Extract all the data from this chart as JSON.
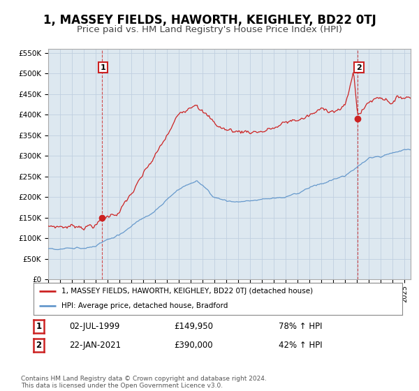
{
  "title": "1, MASSEY FIELDS, HAWORTH, KEIGHLEY, BD22 0TJ",
  "subtitle": "Price paid vs. HM Land Registry's House Price Index (HPI)",
  "title_fontsize": 12,
  "subtitle_fontsize": 9.5,
  "ylim": [
    0,
    560000
  ],
  "yticks": [
    0,
    50000,
    100000,
    150000,
    200000,
    250000,
    300000,
    350000,
    400000,
    450000,
    500000,
    550000
  ],
  "ytick_labels": [
    "£0",
    "£50K",
    "£100K",
    "£150K",
    "£200K",
    "£250K",
    "£300K",
    "£350K",
    "£400K",
    "£450K",
    "£500K",
    "£550K"
  ],
  "sale1_year": 1999.5,
  "sale1_price": 149950,
  "sale2_year": 2021.05,
  "sale2_price": 390000,
  "hpi_color": "#6699cc",
  "price_color": "#cc2222",
  "plot_bg_color": "#dde8f0",
  "legend_label1": "1, MASSEY FIELDS, HAWORTH, KEIGHLEY, BD22 0TJ (detached house)",
  "legend_label2": "HPI: Average price, detached house, Bradford",
  "table_row1": [
    "1",
    "02-JUL-1999",
    "£149,950",
    "78% ↑ HPI"
  ],
  "table_row2": [
    "2",
    "22-JAN-2021",
    "£390,000",
    "42% ↑ HPI"
  ],
  "footer": "Contains HM Land Registry data © Crown copyright and database right 2024.\nThis data is licensed under the Open Government Licence v3.0.",
  "background_color": "#ffffff",
  "grid_color": "#c0cfe0"
}
